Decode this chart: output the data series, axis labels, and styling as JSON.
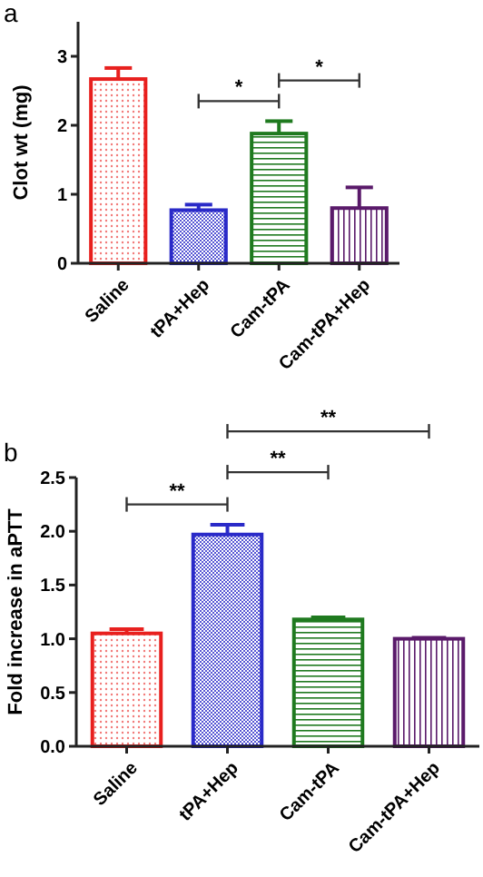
{
  "chart_data": [
    {
      "type": "bar",
      "ylabel": "Clot wt (mg)",
      "categories": [
        "Saline",
        "tPA+Hep",
        "Cam-tPA",
        "Cam-tPA+Hep"
      ],
      "values": [
        2.67,
        0.77,
        1.88,
        0.8
      ],
      "errors": [
        [
          2.67,
          2.83
        ],
        [
          0.77,
          0.85
        ],
        [
          1.88,
          2.06
        ],
        [
          0.8,
          1.1
        ]
      ],
      "colors": [
        "#e8201e",
        "#2a2ac8",
        "#1f7a1f",
        "#5a1a6a"
      ],
      "ylim": [
        0,
        3.5
      ],
      "yticks": [
        0,
        1,
        2,
        3
      ],
      "grid": false,
      "annotations": [
        "a",
        "*",
        "*"
      ]
    },
    {
      "type": "bar",
      "ylabel": "Fold increase in aPTT",
      "categories": [
        "Saline",
        "tPA+Hep",
        "Cam-tPA",
        "Cam-tPA+Hep"
      ],
      "values": [
        1.05,
        1.97,
        1.18,
        1.0
      ],
      "errors": [
        [
          1.05,
          1.09
        ],
        [
          1.97,
          2.06
        ],
        [
          1.18,
          1.2
        ],
        [
          1.0,
          1.01
        ]
      ],
      "colors": [
        "#e8201e",
        "#2a2ac8",
        "#1f7a1f",
        "#5a1a6a"
      ],
      "ylim": [
        0,
        2.5
      ],
      "yticks": [
        {
          "value": 0,
          "label": "0.0"
        },
        {
          "value": 0.5,
          "label": "0.5"
        },
        {
          "value": 1,
          "label": "1.0"
        },
        {
          "value": 1.5,
          "label": "1.5"
        },
        {
          "value": 2,
          "label": "2.0"
        },
        {
          "value": 2.5,
          "label": "2.5"
        }
      ],
      "grid": false,
      "annotations": [
        "b",
        "**",
        "**",
        "**"
      ]
    }
  ]
}
